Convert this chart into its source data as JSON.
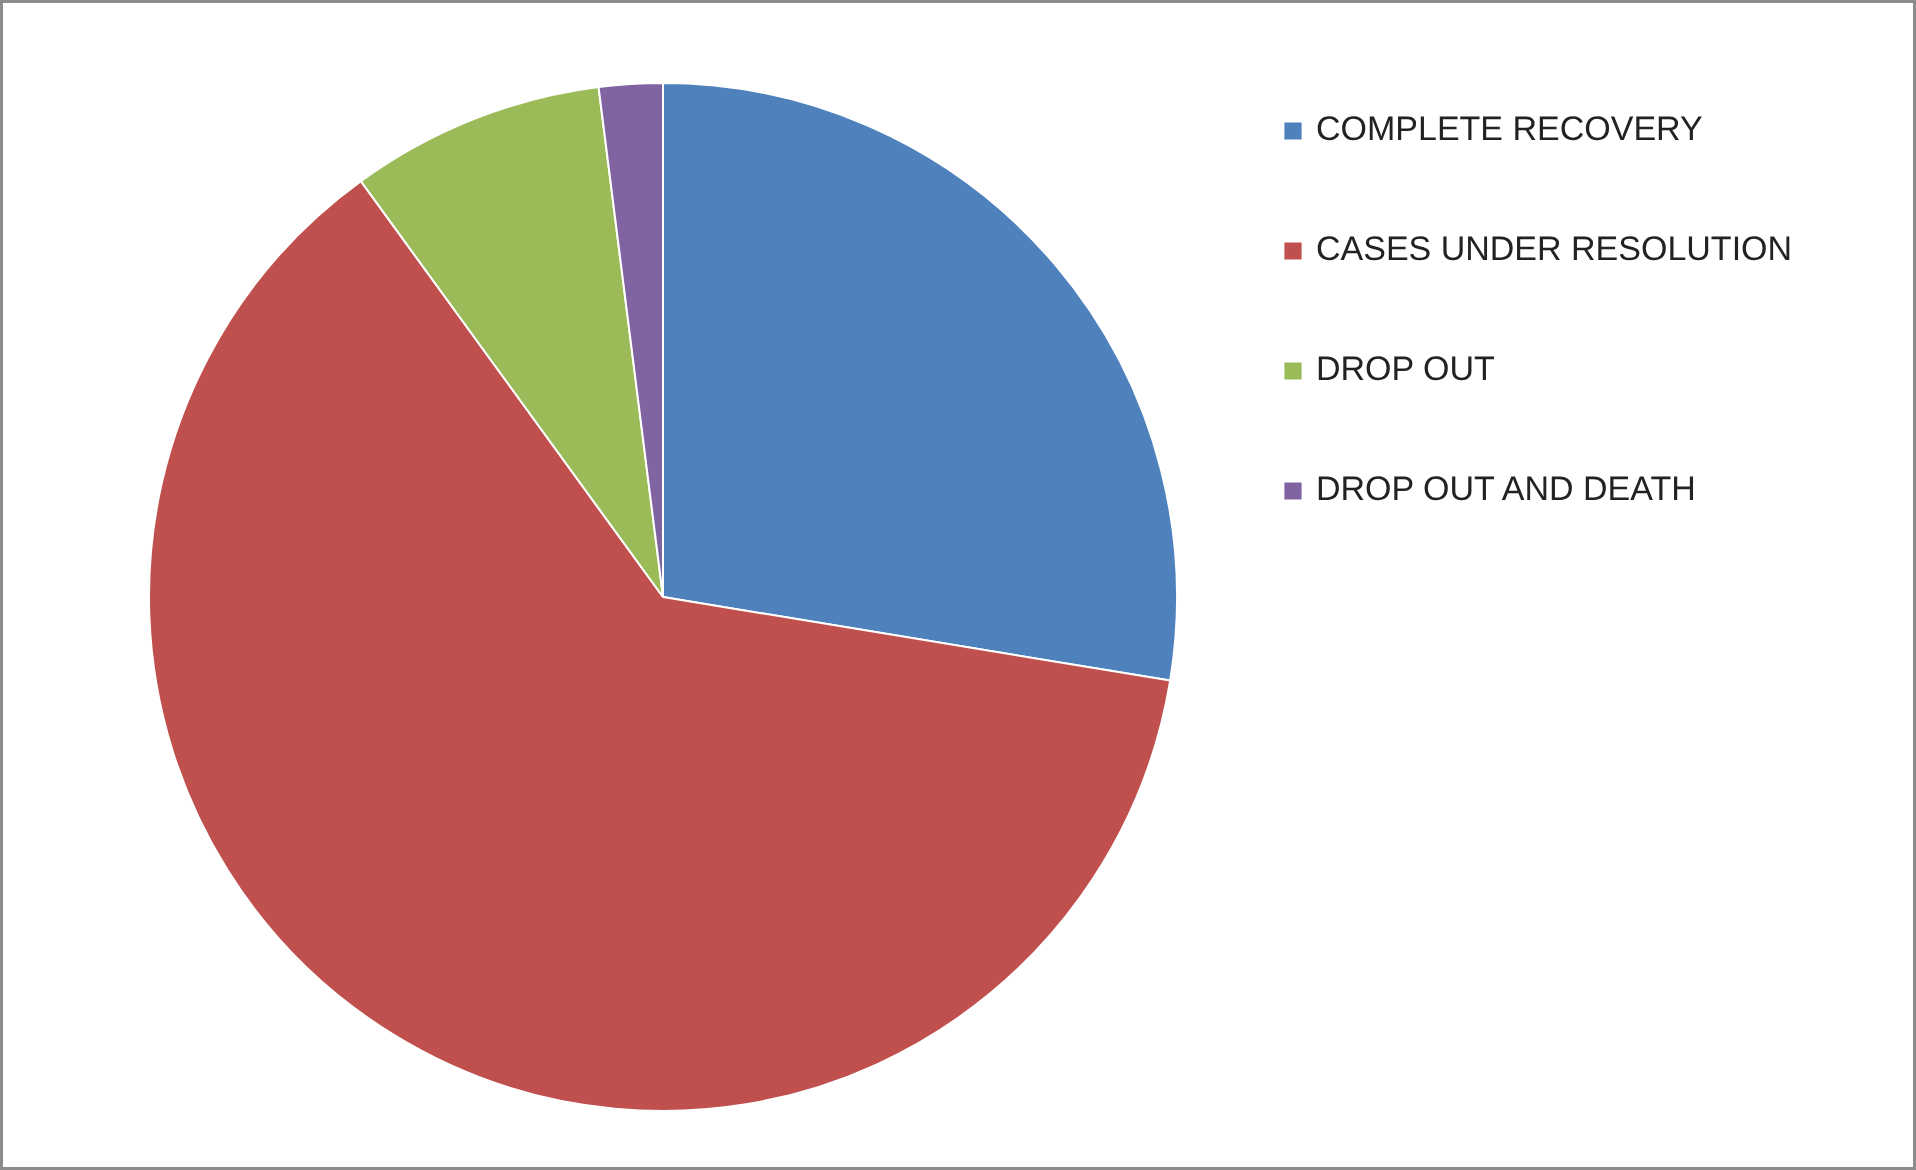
{
  "chart_data": {
    "type": "pie",
    "categories": [
      "COMPLETE RECOVERY",
      "CASES UNDER RESOLUTION",
      "DROP OUT",
      "DROP OUT AND DEATH"
    ],
    "values": [
      27.6,
      62.4,
      8.0,
      2.0
    ],
    "colors": [
      "#4f81bd",
      "#c0504d",
      "#9bbb59",
      "#8064a2"
    ],
    "legend": "right"
  }
}
